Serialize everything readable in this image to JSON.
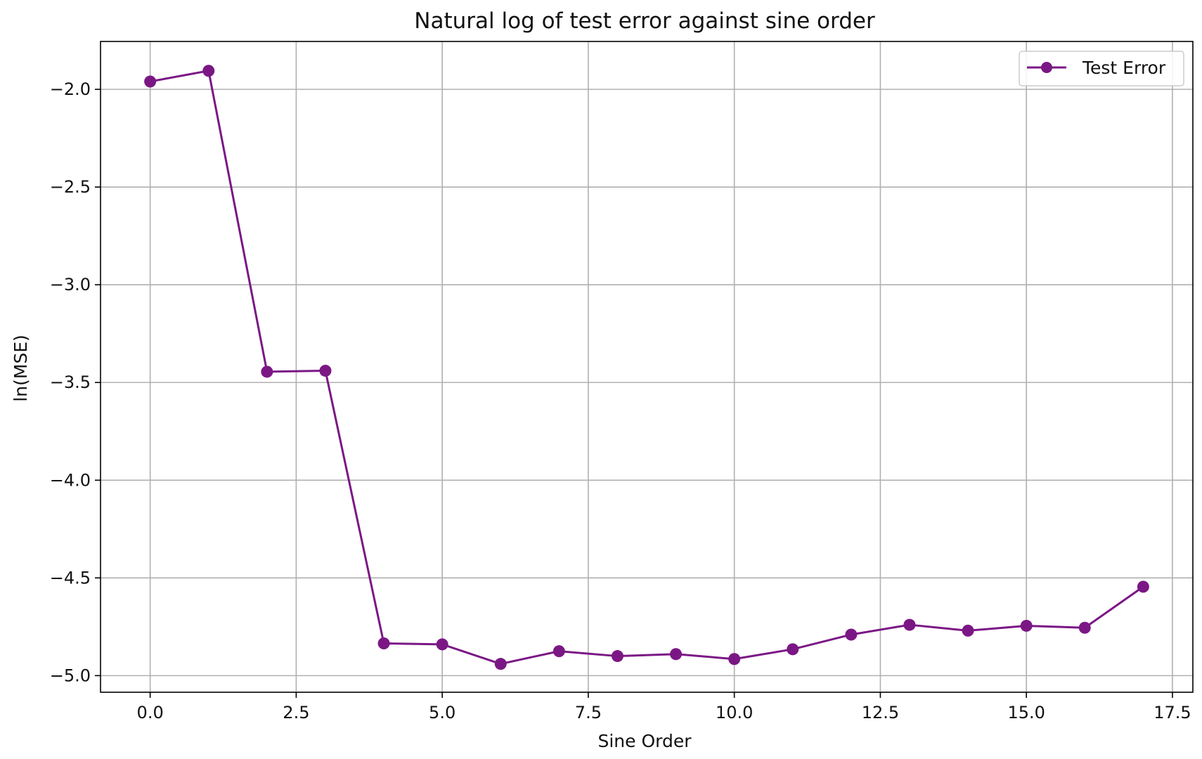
{
  "chart_data": {
    "type": "line",
    "title": "Natural log of test error against sine order",
    "xlabel": "Sine Order",
    "ylabel": "ln(MSE)",
    "xlim": [
      -0.85,
      17.85
    ],
    "ylim": [
      -5.085,
      -1.755
    ],
    "x_ticks": [
      0.0,
      2.5,
      5.0,
      7.5,
      10.0,
      12.5,
      15.0,
      17.5
    ],
    "x_tick_labels": [
      "0.0",
      "2.5",
      "5.0",
      "7.5",
      "10.0",
      "12.5",
      "15.0",
      "17.5"
    ],
    "y_ticks": [
      -2.0,
      -2.5,
      -3.0,
      -3.5,
      -4.0,
      -4.5,
      -5.0
    ],
    "y_tick_labels": [
      "−2.0",
      "−2.5",
      "−3.0",
      "−3.5",
      "−4.0",
      "−4.5",
      "−5.0"
    ],
    "grid": true,
    "legend_position": "top-right",
    "series": [
      {
        "name": "Test Error",
        "color": "#7B1785",
        "marker": "circle",
        "x": [
          0,
          1,
          2,
          3,
          4,
          5,
          6,
          7,
          8,
          9,
          10,
          11,
          12,
          13,
          14,
          15,
          16,
          17
        ],
        "y": [
          -1.96,
          -1.905,
          -3.445,
          -3.44,
          -4.835,
          -4.84,
          -4.94,
          -4.875,
          -4.9,
          -4.89,
          -4.915,
          -4.865,
          -4.79,
          -4.74,
          -4.77,
          -4.745,
          -4.755,
          -4.545
        ]
      }
    ]
  }
}
